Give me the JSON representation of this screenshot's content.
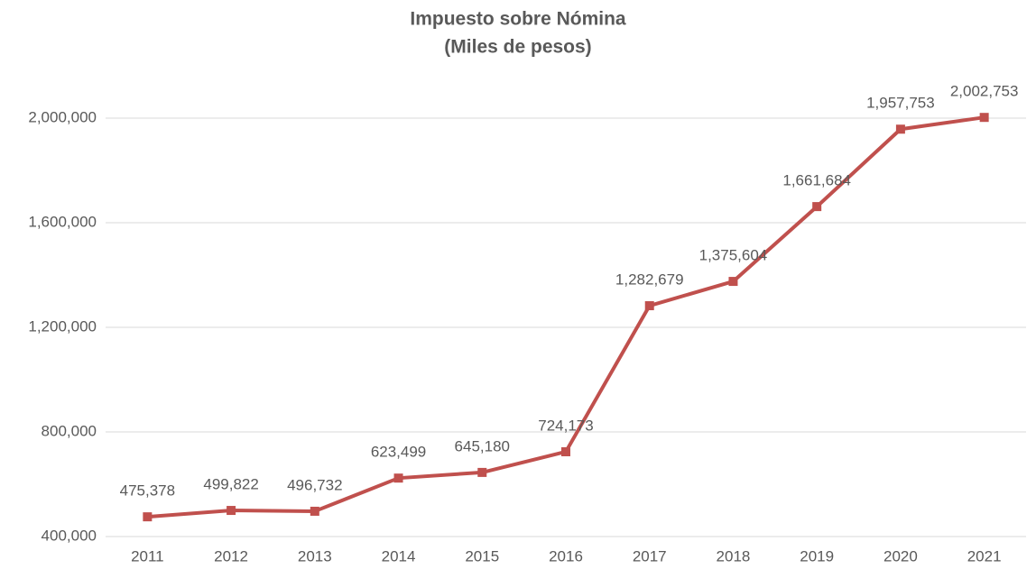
{
  "chart_data": {
    "type": "line",
    "title": "Impuesto sobre Nómina",
    "subtitle": "(Miles de pesos)",
    "categories": [
      "2011",
      "2012",
      "2013",
      "2014",
      "2015",
      "2016",
      "2017",
      "2018",
      "2019",
      "2020",
      "2021"
    ],
    "series": [
      {
        "name": "Impuesto sobre Nómina",
        "color": "#c0504d",
        "values": [
          475378,
          499822,
          496732,
          623499,
          645180,
          724173,
          1282679,
          1375604,
          1661684,
          1957753,
          2002753
        ],
        "value_labels": [
          "475,378",
          "499,822",
          "496,732",
          "623,499",
          "645,180",
          "724,173",
          "1,282,679",
          "1,375,604",
          "1,661,684",
          "1,957,753",
          "2,002,753"
        ]
      }
    ],
    "ylim": [
      400000,
      2000000
    ],
    "yticks": [
      {
        "value": 400000,
        "label": "400,000"
      },
      {
        "value": 800000,
        "label": "800,000"
      },
      {
        "value": 1200000,
        "label": "1,200,000"
      },
      {
        "value": 1600000,
        "label": "1,600,000"
      },
      {
        "value": 2000000,
        "label": "2,000,000"
      }
    ],
    "grid": true
  }
}
